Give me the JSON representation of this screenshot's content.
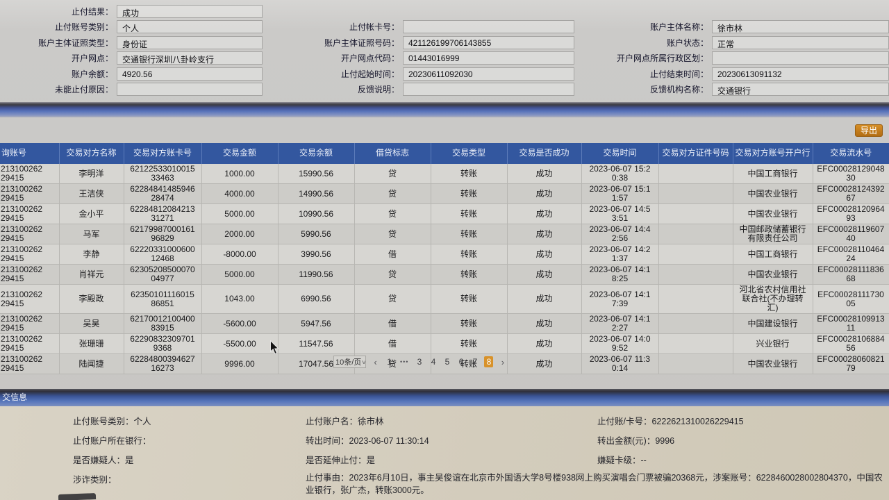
{
  "colors": {
    "header_blue": "#33579f",
    "band_blue": "#5873ba",
    "accent_orange": "#d8922a",
    "panel_beige": "#d3ccbc"
  },
  "top_form": {
    "rows": [
      {
        "l1": "止付结果：",
        "v1": "成功",
        "l2": null,
        "v2": null,
        "l3": null,
        "v3": null
      },
      {
        "l1": "止付账号类别：",
        "v1": "个人",
        "l2": "止付帐卡号：",
        "v2": "",
        "l3": "账户主体名称：",
        "v3": "徐市林"
      },
      {
        "l1": "账户主体证照类型：",
        "v1": "身份证",
        "l2": "账户主体证照号码：",
        "v2": "421126199706143855",
        "l3": "账户状态：",
        "v3": "正常"
      },
      {
        "l1": "开户网点：",
        "v1": "交通银行深圳八卦岭支行",
        "l2": "开户网点代码：",
        "v2": "01443016999",
        "l3": "开户网点所属行政区划：",
        "v3": ""
      },
      {
        "l1": "账户余额：",
        "v1": "4920.56",
        "l2": "止付起始时间：",
        "v2": "20230611092030",
        "l3": "止付结束时间：",
        "v3": "20230613091132"
      },
      {
        "l1": "未能止付原因：",
        "v1": "",
        "l2": "反馈说明：",
        "v2": "",
        "l3": "反馈机构名称：",
        "v3": "交通银行"
      }
    ]
  },
  "table_section": {
    "export_label": "导出",
    "columns": [
      "询账号",
      "交易对方名称",
      "交易对方账卡号",
      "交易金额",
      "交易余额",
      "借贷标志",
      "交易类型",
      "交易是否成功",
      "交易时间",
      "交易对方证件号码",
      "交易对方账号开户行",
      "交易流水号"
    ],
    "rows": [
      [
        "213100262\n29415",
        "李明洋",
        "62122533010015\n33463",
        "1000.00",
        "15990.56",
        "贷",
        "转账",
        "成功",
        "2023-06-07 15:2\n0:38",
        "",
        "中国工商银行",
        "EFC00028129048\n30"
      ],
      [
        "213100262\n29415",
        "王洁侠",
        "62284841485946\n28474",
        "4000.00",
        "14990.56",
        "贷",
        "转账",
        "成功",
        "2023-06-07 15:1\n1:57",
        "",
        "中国农业银行",
        "EFC00028124392\n67"
      ],
      [
        "213100262\n29415",
        "金小平",
        "62284812084213\n31271",
        "5000.00",
        "10990.56",
        "贷",
        "转账",
        "成功",
        "2023-06-07 14:5\n3:51",
        "",
        "中国农业银行",
        "EFC00028120964\n93"
      ],
      [
        "213100262\n29415",
        "马军",
        "62179987000161\n96829",
        "2000.00",
        "5990.56",
        "贷",
        "转账",
        "成功",
        "2023-06-07 14:4\n2:56",
        "",
        "中国邮政储蓄银行\n有限责任公司",
        "EFC00028119607\n40"
      ],
      [
        "213100262\n29415",
        "李静",
        "62220331000600\n12468",
        "-8000.00",
        "3990.56",
        "借",
        "转账",
        "成功",
        "2023-06-07 14:2\n1:37",
        "",
        "中国工商银行",
        "EFC00028110464\n24"
      ],
      [
        "213100262\n29415",
        "肖祥元",
        "62305208500070\n04977",
        "5000.00",
        "11990.56",
        "贷",
        "转账",
        "成功",
        "2023-06-07 14:1\n8:25",
        "",
        "中国农业银行",
        "EFC00028111836\n68"
      ],
      [
        "213100262\n29415",
        "李殿政",
        "62350101116015\n86851",
        "1043.00",
        "6990.56",
        "贷",
        "转账",
        "成功",
        "2023-06-07 14:1\n7:39",
        "",
        "河北省农村信用社\n联合社(不办理转\n汇)",
        "EFC00028111730\n05"
      ],
      [
        "213100262\n29415",
        "吴昊",
        "62170012100400\n83915",
        "-5600.00",
        "5947.56",
        "借",
        "转账",
        "成功",
        "2023-06-07 14:1\n2:27",
        "",
        "中国建设银行",
        "EFC00028109913\n11"
      ],
      [
        "213100262\n29415",
        "张珊珊",
        "62290832309701\n9368",
        "-5500.00",
        "11547.56",
        "借",
        "转账",
        "成功",
        "2023-06-07 14:0\n9:52",
        "",
        "兴业银行",
        "EFC00028106884\n56"
      ],
      [
        "213100262\n29415",
        "陆闻捷",
        "62284800394627\n16273",
        "9996.00",
        "17047.56",
        "贷",
        "转账",
        "成功",
        "2023-06-07 11:3\n0:14",
        "",
        "中国农业银行",
        "EFC00028060821\n79"
      ]
    ],
    "pagination": {
      "page_size": "10条/页",
      "items": [
        {
          "label": "‹",
          "type": "prev"
        },
        {
          "label": "1",
          "type": "page"
        },
        {
          "label": "•••",
          "type": "ellipsis"
        },
        {
          "label": "3",
          "type": "page"
        },
        {
          "label": "4",
          "type": "page"
        },
        {
          "label": "5",
          "type": "page"
        },
        {
          "label": "6",
          "type": "page"
        },
        {
          "label": "7",
          "type": "page"
        },
        {
          "label": "8",
          "type": "current"
        },
        {
          "label": "›",
          "type": "next"
        }
      ]
    }
  },
  "bottom_section": {
    "header": "交信息",
    "fields": [
      {
        "row": 0,
        "slot": 0,
        "text": "止付账号类别：个人"
      },
      {
        "row": 0,
        "slot": 1,
        "text": "止付账户名：徐市林"
      },
      {
        "row": 0,
        "slot": 2,
        "text": "止付账/卡号：6222621310026229415"
      },
      {
        "row": 1,
        "slot": 0,
        "text": "止付账户所在银行："
      },
      {
        "row": 1,
        "slot": 1,
        "text": "转出时间：2023-06-07 11:30:14"
      },
      {
        "row": 1,
        "slot": 2,
        "text": "转出金额(元)：9996"
      },
      {
        "row": 2,
        "slot": 0,
        "text": "是否嫌疑人：是"
      },
      {
        "row": 2,
        "slot": 1,
        "text": "是否延伸止付：是"
      },
      {
        "row": 2,
        "slot": 2,
        "text": "嫌疑卡级：--"
      },
      {
        "row": 3,
        "slot": 0,
        "text": "涉诈类别："
      },
      {
        "row": 3,
        "slot": 1,
        "wide": true,
        "text": "止付事由：2023年6月10日，事主吴俊谊在北京市外国语大学8号楼938网上购买演唱会门票被骗20368元，涉案账号：6228460028002804370，中国农业银行，张广杰，转账3000元。"
      }
    ]
  }
}
